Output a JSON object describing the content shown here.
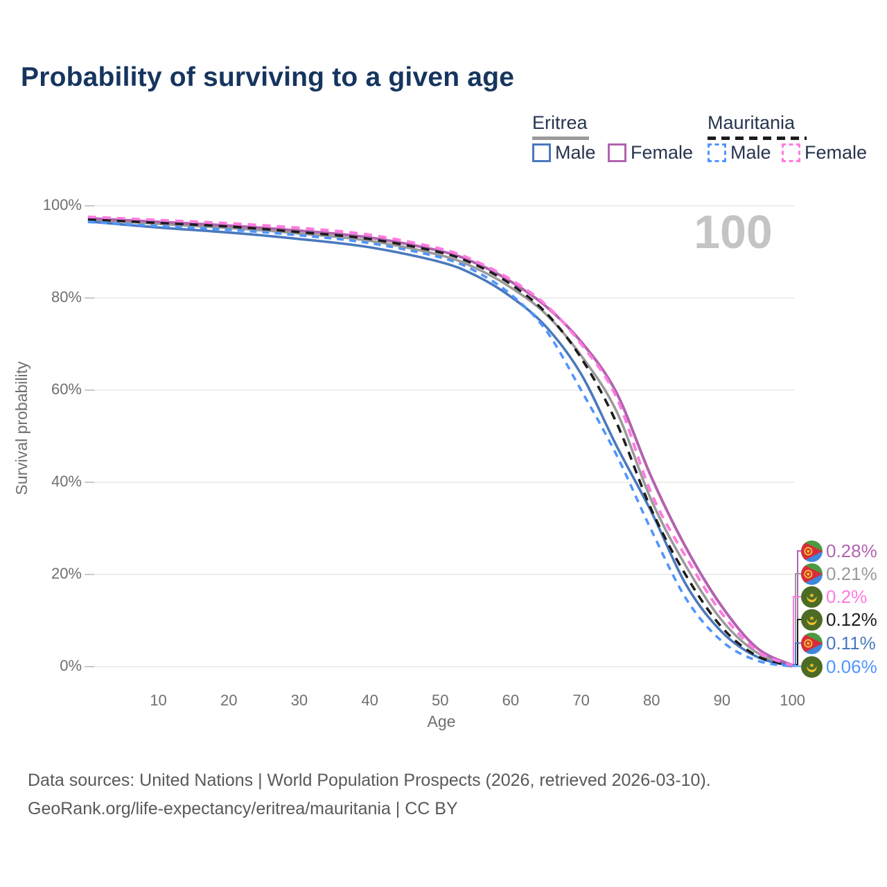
{
  "title": "Probability of surviving to a given age",
  "watermark": "100",
  "legend": {
    "groups": [
      {
        "label": "Eritrea",
        "line_style": "solid",
        "underline_color": "#9a9a9a",
        "items": [
          {
            "label": "Male",
            "color": "#4a78bd",
            "dashed": false
          },
          {
            "label": "Female",
            "color": "#b263ae",
            "dashed": false
          }
        ]
      },
      {
        "label": "Mauritania",
        "line_style": "dashed",
        "underline_color": "#1c1c1c",
        "items": [
          {
            "label": "Male",
            "color": "#4f95ff",
            "dashed": true
          },
          {
            "label": "Female",
            "color": "#ff7ae0",
            "dashed": true
          }
        ]
      }
    ]
  },
  "chart_data": {
    "type": "line",
    "title": "Probability of surviving to a given age",
    "xlabel": "Age",
    "ylabel": "Survival probability",
    "xlim": [
      0,
      100
    ],
    "ylim": [
      0,
      100
    ],
    "grid": "horizontal",
    "x_ticks": [
      10,
      20,
      30,
      40,
      50,
      60,
      70,
      80,
      90,
      100
    ],
    "y_ticks": [
      {
        "value": 0,
        "label": "0%"
      },
      {
        "value": 20,
        "label": "20%"
      },
      {
        "value": 40,
        "label": "40%"
      },
      {
        "value": 60,
        "label": "60%"
      },
      {
        "value": 80,
        "label": "80%"
      },
      {
        "value": 100,
        "label": "100%"
      }
    ],
    "x": [
      0,
      10,
      20,
      30,
      40,
      50,
      55,
      60,
      65,
      70,
      75,
      80,
      85,
      90,
      95,
      100
    ],
    "series": [
      {
        "name": "Eritrea",
        "country": "Eritrea",
        "sex": "all",
        "color": "#9a9a9a",
        "dashed": false,
        "values": [
          97.0,
          96.1,
          95.2,
          94.0,
          92.4,
          89.3,
          86.5,
          82.3,
          76.5,
          67.5,
          55.5,
          36.0,
          21.5,
          10.0,
          3.0,
          0.21
        ]
      },
      {
        "name": "Eritrea Female",
        "country": "Eritrea",
        "sex": "female",
        "color": "#b263ae",
        "dashed": false,
        "values": [
          97.3,
          96.5,
          95.7,
          94.6,
          93.1,
          90.2,
          87.6,
          83.6,
          78.2,
          70.5,
          59.5,
          41.0,
          25.5,
          13.0,
          4.0,
          0.28
        ]
      },
      {
        "name": "Eritrea Male",
        "country": "Eritrea",
        "sex": "male",
        "color": "#4a78bd",
        "dashed": false,
        "values": [
          96.6,
          95.3,
          94.2,
          92.8,
          91.0,
          87.8,
          84.9,
          80.3,
          73.8,
          63.5,
          48.0,
          33.5,
          17.5,
          7.5,
          2.1,
          0.11
        ]
      },
      {
        "name": "Mauritania",
        "country": "Mauritania",
        "sex": "all",
        "color": "#1c1c1c",
        "dashed": true,
        "values": [
          97.1,
          96.3,
          95.5,
          94.3,
          92.8,
          89.9,
          87.2,
          83.0,
          76.8,
          67.0,
          53.0,
          34.0,
          19.5,
          8.5,
          2.3,
          0.12
        ]
      },
      {
        "name": "Mauritania Male",
        "country": "Mauritania",
        "sex": "male",
        "color": "#4f95ff",
        "dashed": true,
        "values": [
          96.5,
          95.6,
          94.8,
          93.6,
          91.9,
          88.8,
          85.8,
          80.8,
          73.0,
          60.0,
          46.0,
          29.5,
          14.5,
          5.5,
          1.3,
          0.06
        ]
      },
      {
        "name": "Mauritania Female",
        "country": "Mauritania",
        "sex": "female",
        "color": "#ff7ae0",
        "dashed": true,
        "values": [
          97.6,
          96.9,
          96.2,
          95.2,
          93.7,
          90.7,
          88.0,
          84.0,
          78.5,
          70.0,
          58.5,
          37.5,
          23.5,
          11.5,
          3.4,
          0.2
        ]
      }
    ],
    "annotation_age": "100"
  },
  "endpoints": [
    {
      "value": "0.28%",
      "series": "Eritrea Female",
      "flag": "eritrea",
      "color": "#b263ae"
    },
    {
      "value": "0.21%",
      "series": "Eritrea",
      "flag": "eritrea",
      "color": "#9a9a9a"
    },
    {
      "value": "0.2%",
      "series": "Mauritania Female",
      "flag": "mauritania",
      "color": "#ff7ae0"
    },
    {
      "value": "0.12%",
      "series": "Mauritania",
      "flag": "mauritania",
      "color": "#1c1c1c"
    },
    {
      "value": "0.11%",
      "series": "Eritrea Male",
      "flag": "eritrea",
      "color": "#4a78bd"
    },
    {
      "value": "0.06%",
      "series": "Mauritania Male",
      "flag": "mauritania",
      "color": "#4f95ff"
    }
  ],
  "footer": {
    "line1": "Data sources: United Nations | World Population Prospects (2026, retrieved 2026-03-10).",
    "line2": "GeoRank.org/life-expectancy/eritrea/mauritania | CC BY"
  }
}
